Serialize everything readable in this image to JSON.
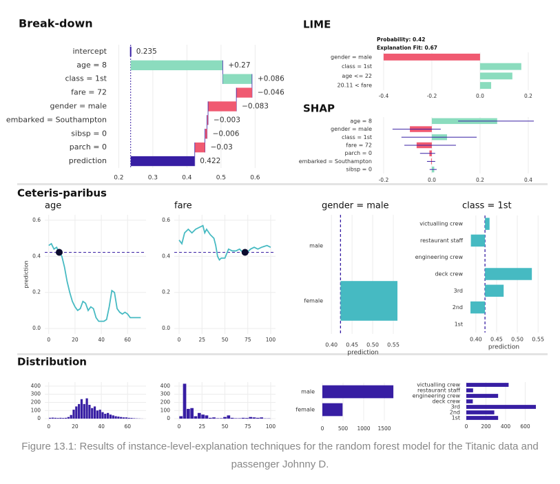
{
  "headings": [
    "Ceteris-paribus",
    "Distribution"
  ],
  "caption": "Figure 13.1: Results of instance-level-explanation techniques for the random forest model for the Titanic data and passenger Johnny D.",
  "chart_data": [
    {
      "type": "waterfall",
      "title": "Break-down",
      "categories": [
        "intercept",
        "age = 8",
        "class = 1st",
        "fare = 72",
        "gender = male",
        "embarked = Southampton",
        "sibsp = 0",
        "parch = 0",
        "prediction"
      ],
      "values": [
        0.235,
        0.27,
        0.086,
        -0.046,
        -0.083,
        -0.003,
        -0.006,
        -0.03,
        0.422
      ],
      "value_labels": [
        "0.235",
        "+0.27",
        "+0.086",
        "−0.046",
        "−0.083",
        "−0.003",
        "−0.006",
        "−0.03",
        "0.422"
      ],
      "xlim": [
        0.175,
        0.67
      ],
      "xticks": [
        0.2,
        0.3,
        0.4,
        0.5,
        0.6
      ],
      "grid": true,
      "colors": {
        "positive": "#8bdcbe",
        "negative": "#f05a71",
        "prediction": "#371ea3"
      }
    },
    {
      "type": "hbar",
      "title": "LIME",
      "annotations": [
        "Probability: 0.42",
        "Explanation Fit: 0.67"
      ],
      "categories": [
        "gender = male",
        "class = 1st",
        "age <= 22",
        "20.11 < fare"
      ],
      "values": [
        -0.4,
        0.171,
        0.134,
        0.046
      ],
      "xlim": [
        -0.434,
        0.223
      ],
      "xticks": [
        -0.4,
        -0.2,
        {
          "value": 0,
          "label": "0.0"
        },
        0.2
      ],
      "grid": true,
      "colors": {
        "positive": "#8bdcbe",
        "negative": "#f05a71"
      }
    },
    {
      "type": "shap",
      "title": "SHAP",
      "categories": [
        "age = 8",
        "gender = male",
        "class = 1st",
        "fare = 72",
        "parch = 0",
        "embarked = Southampton",
        "sibsp = 0"
      ],
      "values": [
        0.271,
        -0.091,
        0.063,
        -0.063,
        -0.01,
        -0.003,
        0.01
      ],
      "low": [
        0.109,
        -0.163,
        -0.126,
        -0.114,
        -0.049,
        -0.02,
        -0.009
      ],
      "high": [
        0.423,
        0.037,
        0.186,
        0.1,
        0.014,
        0.014,
        0.02
      ],
      "xlim": [
        -0.234,
        0.423
      ],
      "xticks": [
        -0.2,
        {
          "value": 0,
          "label": "0.0"
        },
        0.2,
        0.4
      ],
      "grid": true,
      "colors": {
        "positive": "#8bdcbe",
        "negative": "#f05a71",
        "whisker": "#371ea3"
      }
    },
    {
      "type": "line",
      "title": "age",
      "ylabel": "prediction",
      "x": [
        0,
        2,
        4,
        6,
        8,
        10,
        12,
        14,
        16,
        18,
        20,
        22,
        24,
        26,
        28,
        30,
        32,
        34,
        36,
        38,
        40,
        42,
        44,
        46,
        48,
        50,
        52,
        54,
        56,
        58,
        60,
        62,
        64,
        66,
        70
      ],
      "values": [
        0.46,
        0.47,
        0.44,
        0.45,
        0.42,
        0.4,
        0.34,
        0.26,
        0.2,
        0.15,
        0.12,
        0.1,
        0.11,
        0.15,
        0.14,
        0.1,
        0.12,
        0.11,
        0.06,
        0.04,
        0.04,
        0.04,
        0.05,
        0.12,
        0.21,
        0.2,
        0.11,
        0.09,
        0.08,
        0.09,
        0.08,
        0.06,
        0.06,
        0.06,
        0.06
      ],
      "observation": {
        "x": 8,
        "y": 0.422
      },
      "xlim": [
        -3,
        74
      ],
      "ylim": [
        -0.03,
        0.63
      ],
      "xticks": [
        0,
        20,
        40,
        60
      ],
      "yticks": [
        {
          "value": 0,
          "label": "0.0"
        },
        0.2,
        0.4,
        0.6
      ],
      "grid": true,
      "color": "#46bac2"
    },
    {
      "type": "line",
      "title": "fare",
      "x": [
        0,
        3,
        6,
        10,
        14,
        18,
        22,
        26,
        28,
        30,
        34,
        38,
        40,
        42,
        44,
        46,
        50,
        54,
        58,
        62,
        66,
        70,
        74,
        78,
        82,
        86,
        90,
        96,
        100
      ],
      "values": [
        0.49,
        0.47,
        0.53,
        0.55,
        0.53,
        0.55,
        0.56,
        0.57,
        0.53,
        0.55,
        0.52,
        0.5,
        0.46,
        0.4,
        0.38,
        0.39,
        0.39,
        0.44,
        0.43,
        0.43,
        0.44,
        0.42,
        0.42,
        0.44,
        0.45,
        0.44,
        0.45,
        0.46,
        0.45
      ],
      "observation": {
        "x": 72,
        "y": 0.422
      },
      "xlim": [
        -5.3,
        105.3
      ],
      "ylim": [
        -0.03,
        0.63
      ],
      "xticks": [
        0,
        25,
        50,
        75,
        100
      ],
      "yticks": [
        {
          "value": 0,
          "label": "0.0"
        },
        0.2,
        0.4,
        0.6
      ],
      "grid": true,
      "color": "#46bac2"
    },
    {
      "type": "hbar",
      "title": "gender = male",
      "xlabel": "prediction",
      "categories": [
        "male",
        "female"
      ],
      "values": [
        0.422,
        0.56
      ],
      "baseline": 0.422,
      "xlim": [
        0.388,
        0.565
      ],
      "xticks": [
        {
          "value": 0.4,
          "label": "0.40"
        },
        0.45,
        {
          "value": 0.5,
          "label": "0.50"
        },
        0.55
      ],
      "grid": true,
      "color": "#46bac2"
    },
    {
      "type": "hbar",
      "title": "class = 1st",
      "xlabel": "prediction",
      "categories": [
        "victualling crew",
        "restaurant staff",
        "engineering crew",
        "deck crew",
        "3rd",
        "2nd",
        "1st"
      ],
      "values": [
        0.433,
        0.388,
        0.422,
        0.535,
        0.467,
        0.387,
        0.422
      ],
      "baseline": 0.422,
      "xlim": [
        0.377,
        0.558
      ],
      "xticks": [
        {
          "value": 0.4,
          "label": "0.40"
        },
        0.45,
        {
          "value": 0.5,
          "label": "0.50"
        },
        0.55
      ],
      "grid": true,
      "color": "#46bac2"
    },
    {
      "type": "histogram",
      "bins": [
        0,
        2,
        4,
        6,
        8,
        10,
        12,
        14,
        16,
        18,
        20,
        22,
        24,
        26,
        28,
        30,
        32,
        34,
        36,
        38,
        40,
        42,
        44,
        46,
        48,
        50,
        52,
        54,
        56,
        58,
        60,
        62,
        64,
        66,
        68,
        70,
        72
      ],
      "values": [
        10,
        12,
        10,
        8,
        10,
        8,
        10,
        20,
        45,
        110,
        150,
        180,
        240,
        180,
        250,
        170,
        130,
        150,
        100,
        110,
        80,
        60,
        70,
        50,
        40,
        30,
        25,
        20,
        15,
        15,
        10,
        8,
        5,
        3,
        2,
        1
      ],
      "xlim": [
        -3,
        74
      ],
      "ylim": [
        -25,
        450
      ],
      "xticks": [
        0,
        20,
        40,
        60
      ],
      "yticks": [
        0,
        100,
        200,
        300,
        400
      ],
      "grid": true,
      "color": "#371ea3"
    },
    {
      "type": "histogram",
      "bins": [
        0,
        4,
        8,
        12,
        16,
        20,
        24,
        28,
        32,
        36,
        40,
        44,
        48,
        52,
        56,
        60,
        64,
        68,
        72,
        76,
        80,
        84,
        88,
        92,
        96,
        100
      ],
      "values": [
        30,
        430,
        120,
        130,
        30,
        70,
        50,
        40,
        10,
        15,
        5,
        5,
        20,
        40,
        10,
        5,
        5,
        10,
        8,
        20,
        15,
        10,
        15,
        3,
        3
      ],
      "xlim": [
        -5.3,
        105.3
      ],
      "ylim": [
        -25,
        450
      ],
      "xticks": [
        0,
        25,
        50,
        75,
        100
      ],
      "yticks": [
        0,
        100,
        200,
        300,
        400
      ],
      "grid": true,
      "color": "#371ea3"
    },
    {
      "type": "hbar",
      "categories": [
        "male",
        "female"
      ],
      "values": [
        1718,
        489
      ],
      "xlim": [
        -100,
        1783
      ],
      "xticks": [
        0,
        500,
        1000,
        1500
      ],
      "grid": true,
      "color": "#371ea3"
    },
    {
      "type": "hbar",
      "categories": [
        "victualling crew",
        "restaurant staff",
        "engineering crew",
        "deck crew",
        "3rd",
        "2nd",
        "1st"
      ],
      "values": [
        431,
        69,
        324,
        66,
        709,
        285,
        324
      ],
      "xlim": [
        -28,
        758
      ],
      "xticks": [
        0,
        200,
        400,
        600
      ],
      "grid": true,
      "color": "#371ea3"
    }
  ]
}
